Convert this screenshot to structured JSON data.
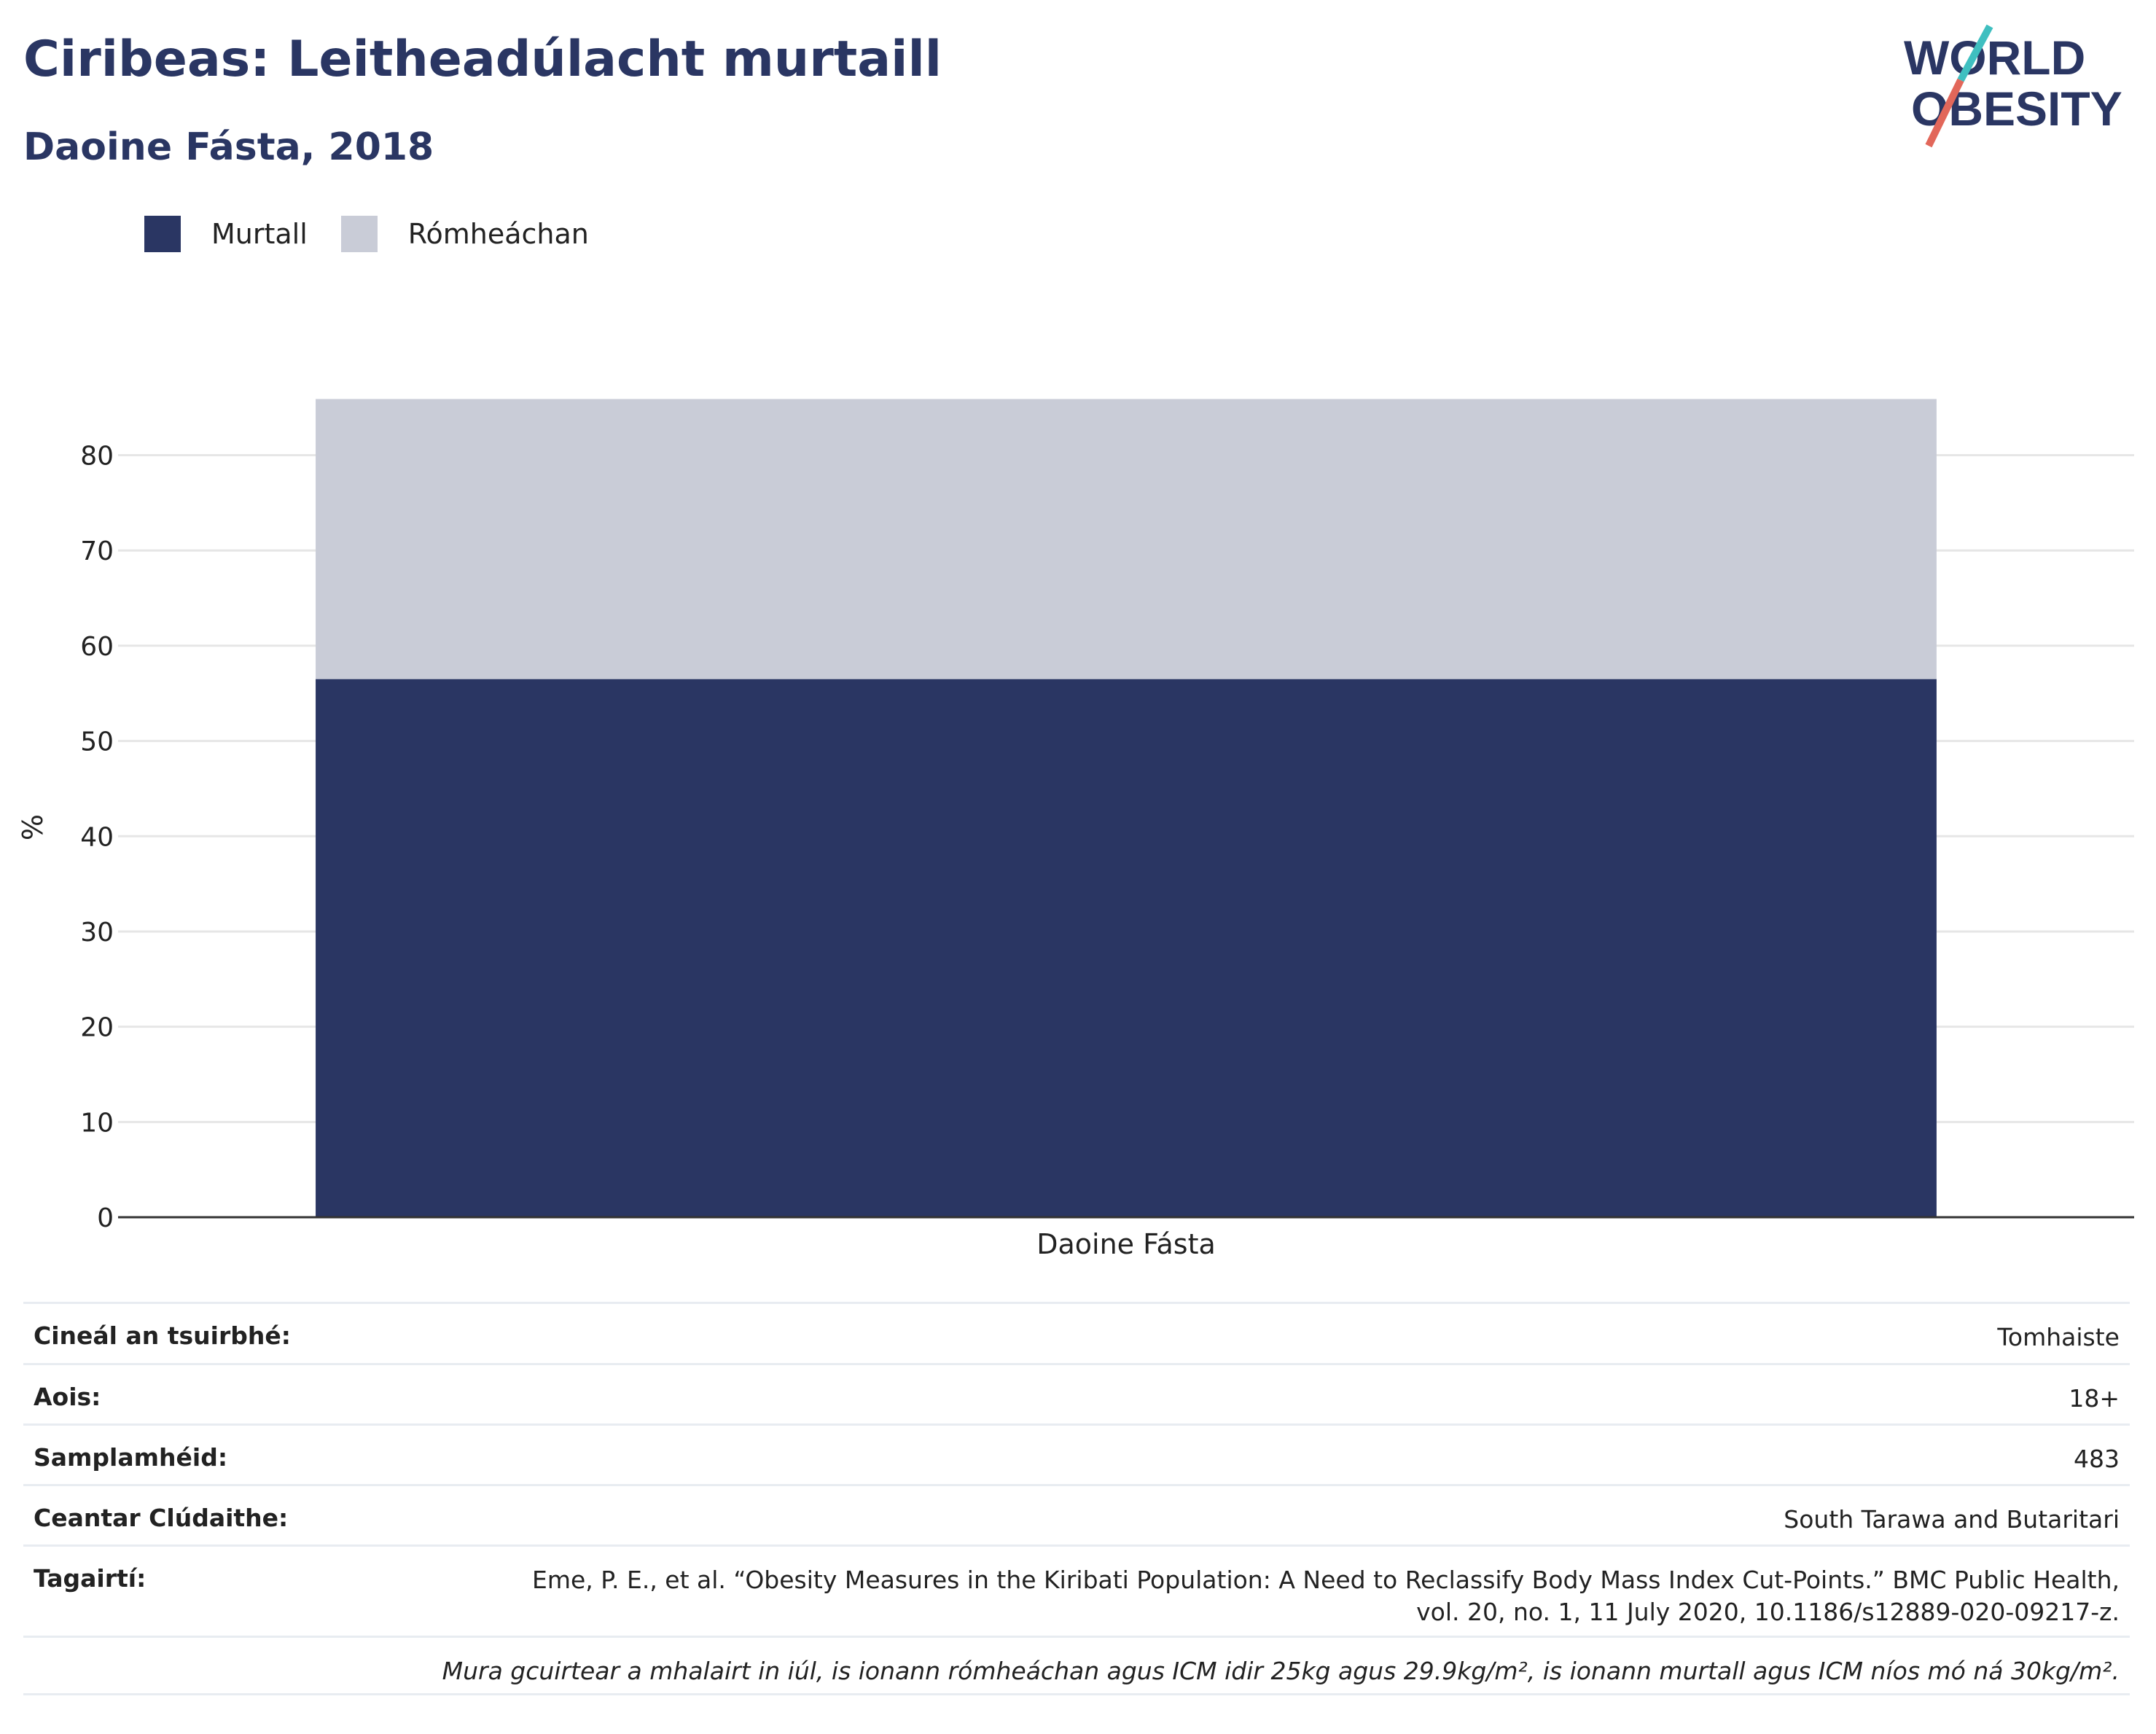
{
  "header": {
    "title": "Ciribeas: Leitheadúlacht murtaill",
    "subtitle": "Daoine Fásta, 2018"
  },
  "logo": {
    "line1": "WORLD",
    "line2": "OBESITY"
  },
  "colors": {
    "obese": "#2a3663",
    "overweight": "#c9ccd7",
    "title": "#2a3663",
    "grid": "#e6e6e6",
    "axis": "#333333"
  },
  "chart_data": {
    "type": "bar",
    "stacked": true,
    "categories": [
      "Daoine Fásta"
    ],
    "series": [
      {
        "name": "Murtall",
        "values": [
          56.5
        ]
      },
      {
        "name": "Rómheáchan",
        "values": [
          29.4
        ]
      }
    ],
    "ylabel": "%",
    "xlabel": "",
    "ylim": [
      0,
      88
    ],
    "yticks": [
      0,
      10,
      20,
      30,
      40,
      50,
      60,
      70,
      80
    ],
    "grid": true,
    "legend_position": "top-left"
  },
  "meta": {
    "survey_type_label": "Cineál an tsuirbhé:",
    "survey_type_value": "Tomhaiste",
    "age_label": "Aois:",
    "age_value": "18+",
    "sample_label": "Samplamhéid:",
    "sample_value": "483",
    "area_label": "Ceantar Clúdaithe:",
    "area_value": "South Tarawa and Butaritari",
    "refs_label": "Tagairtí:",
    "refs_line1": "Eme, P. E., et al. “Obesity Measures in the Kiribati Population: A Need to Reclassify Body Mass Index Cut-Points.” BMC Public Health,",
    "refs_line2": "vol. 20, no. 1, 11 July 2020, 10.1186/s12889-020-09217-z.",
    "note": "Mura gcuirtear a mhalairt in iúl, is ionann rómheáchan agus ICM idir 25kg agus 29.9kg/m², is ionann murtall agus ICM níos mó ná 30kg/m²."
  }
}
